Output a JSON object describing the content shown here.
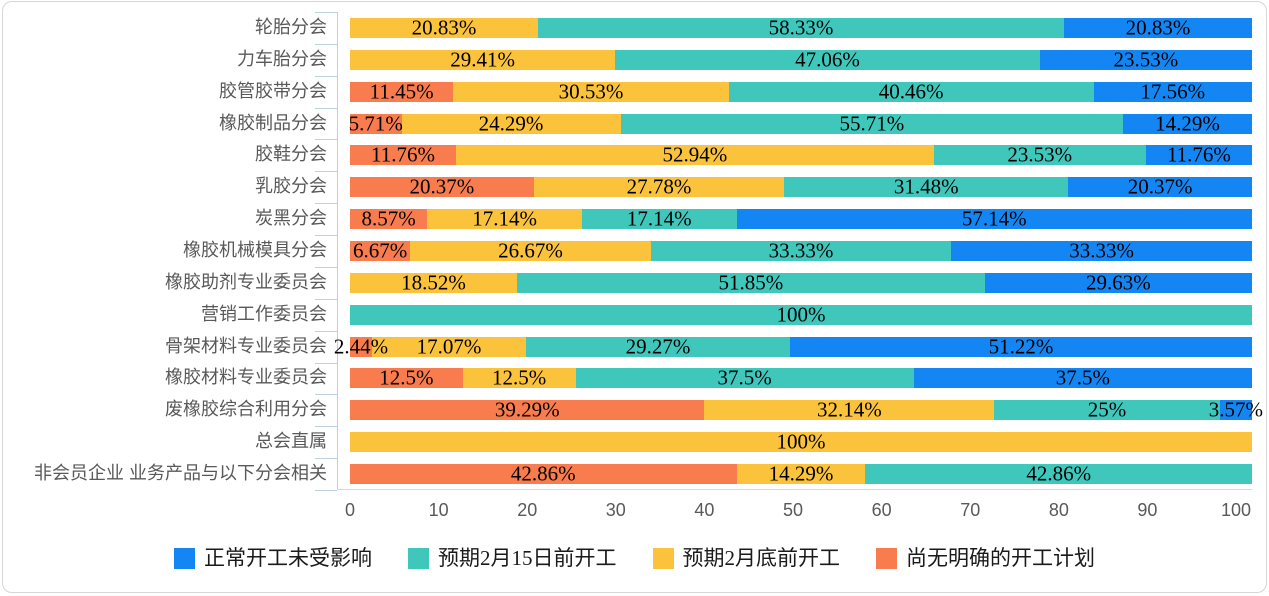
{
  "chart_data": {
    "type": "bar",
    "orientation": "horizontal",
    "stacked": true,
    "value_unit": "%",
    "grid": false,
    "legend_position": "bottom",
    "categories": [
      "轮胎分会",
      "力车胎分会",
      "胶管胶带分会",
      "橡胶制品分会",
      "胶鞋分会",
      "乳胶分会",
      "炭黑分会",
      "橡胶机械模具分会",
      "橡胶助剂专业委员会",
      "营销工作委员会",
      "骨架材料专业委员会",
      "橡胶材料专业委员会",
      "废橡胶综合利用分会",
      "总会直属",
      "非会员企业 业务产品与以下分会相关"
    ],
    "series": [
      {
        "name": "正常开工未受影响",
        "color": "#1486f4",
        "values": [
          20.83,
          23.53,
          17.56,
          14.29,
          11.76,
          20.37,
          57.14,
          33.33,
          29.63,
          0,
          51.22,
          37.5,
          3.57,
          0,
          0
        ]
      },
      {
        "name": "预期2月15日前开工",
        "color": "#3fc7bc",
        "values": [
          58.33,
          47.06,
          40.46,
          55.71,
          23.53,
          31.48,
          17.14,
          33.33,
          51.85,
          100,
          29.27,
          37.5,
          25,
          0,
          42.86
        ]
      },
      {
        "name": "预期2月底前开工",
        "color": "#fbc23c",
        "values": [
          20.83,
          29.41,
          30.53,
          24.29,
          52.94,
          27.78,
          17.14,
          26.67,
          18.52,
          0,
          17.07,
          12.5,
          32.14,
          100,
          14.29
        ]
      },
      {
        "name": "尚无明确的开工计划",
        "color": "#f87c4d",
        "values": [
          0,
          0,
          11.45,
          5.71,
          11.76,
          20.37,
          8.57,
          6.67,
          0,
          0,
          2.44,
          12.5,
          39.29,
          0,
          42.86
        ]
      }
    ],
    "segment_draw_order": [
      "尚无明确的开工计划",
      "预期2月底前开工",
      "预期2月15日前开工",
      "正常开工未受影响"
    ],
    "x_ticks": [
      "0",
      "10",
      "20",
      "30",
      "40",
      "50",
      "60",
      "70",
      "80",
      "90",
      "100"
    ],
    "xlim": [
      0,
      101.8
    ]
  }
}
